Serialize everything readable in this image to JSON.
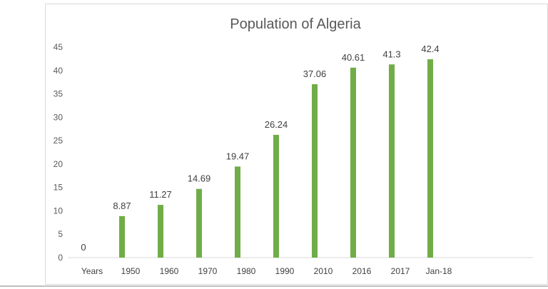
{
  "chart_data": {
    "type": "bar",
    "title": "Population of Algeria",
    "categories": [
      "Years",
      "1950",
      "1960",
      "1970",
      "1980",
      "1990",
      "2010",
      "2016",
      "2017",
      "Jan-18"
    ],
    "values": [
      0,
      8.87,
      11.27,
      14.69,
      19.47,
      26.24,
      37.06,
      40.61,
      41.3,
      42.4
    ],
    "data_labels": [
      "0",
      "8.87",
      "11.27",
      "14.69",
      "19.47",
      "26.24",
      "37.06",
      "40.61",
      "41.3",
      "42.4"
    ],
    "xlabel": "",
    "ylabel": "",
    "ylim": [
      0,
      45
    ],
    "yticks": [
      "0",
      "5",
      "10",
      "15",
      "20",
      "25",
      "30",
      "35",
      "40",
      "45"
    ],
    "grid": false,
    "legend": "none",
    "bar_color": "#70ad47"
  }
}
